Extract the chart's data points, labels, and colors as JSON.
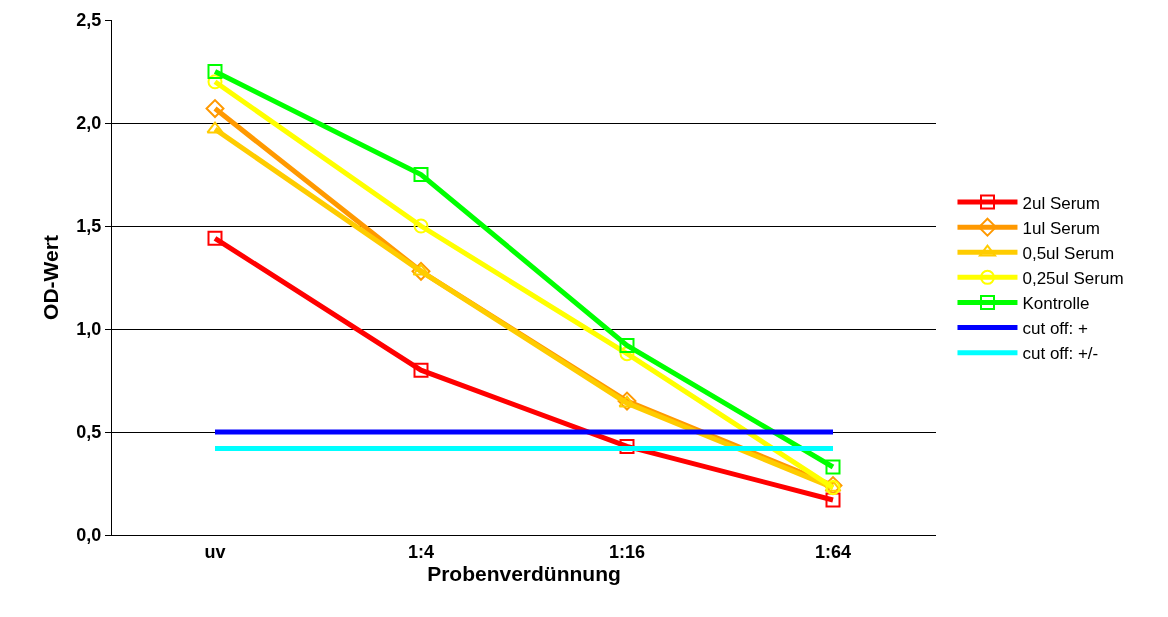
{
  "chart_data": {
    "type": "line",
    "xlabel": "Probenverdünnung",
    "ylabel": "OD-Wert",
    "categories": [
      "uv",
      "1:4",
      "1:16",
      "1:64"
    ],
    "series": [
      {
        "name": "2ul Serum",
        "color": "#ff0000",
        "marker": "square",
        "values": [
          1.44,
          0.8,
          0.43,
          0.17
        ]
      },
      {
        "name": "1ul Serum",
        "color": "#ff9900",
        "marker": "diamond",
        "values": [
          2.07,
          1.28,
          0.65,
          0.24
        ]
      },
      {
        "name": "0,5ul Serum",
        "color": "#ffcc00",
        "marker": "triangle",
        "values": [
          1.97,
          1.28,
          0.64,
          0.23
        ]
      },
      {
        "name": "0,25ul Serum",
        "color": "#ffff00",
        "marker": "circle",
        "values": [
          2.2,
          1.5,
          0.88,
          0.23
        ]
      },
      {
        "name": "Kontrolle",
        "color": "#00ff00",
        "marker": "square",
        "values": [
          2.25,
          1.75,
          0.92,
          0.33
        ]
      },
      {
        "name": "cut off: +",
        "color": "#0000ff",
        "marker": "none",
        "values": [
          0.5,
          0.5,
          0.5,
          0.5
        ]
      },
      {
        "name": "cut off: +/-",
        "color": "#00ffff",
        "marker": "none",
        "values": [
          0.42,
          0.42,
          0.42,
          0.42
        ]
      }
    ],
    "ylim": [
      0,
      2.5
    ],
    "yticks": [
      {
        "value": 0,
        "label": "0,0"
      },
      {
        "value": 0.5,
        "label": "0,5"
      },
      {
        "value": 1,
        "label": "1,0"
      },
      {
        "value": 1.5,
        "label": "1,5"
      },
      {
        "value": 2,
        "label": "2,0"
      },
      {
        "value": 2.5,
        "label": "2,5"
      }
    ],
    "grid": "y",
    "legend": "right",
    "line_style": "solid"
  }
}
